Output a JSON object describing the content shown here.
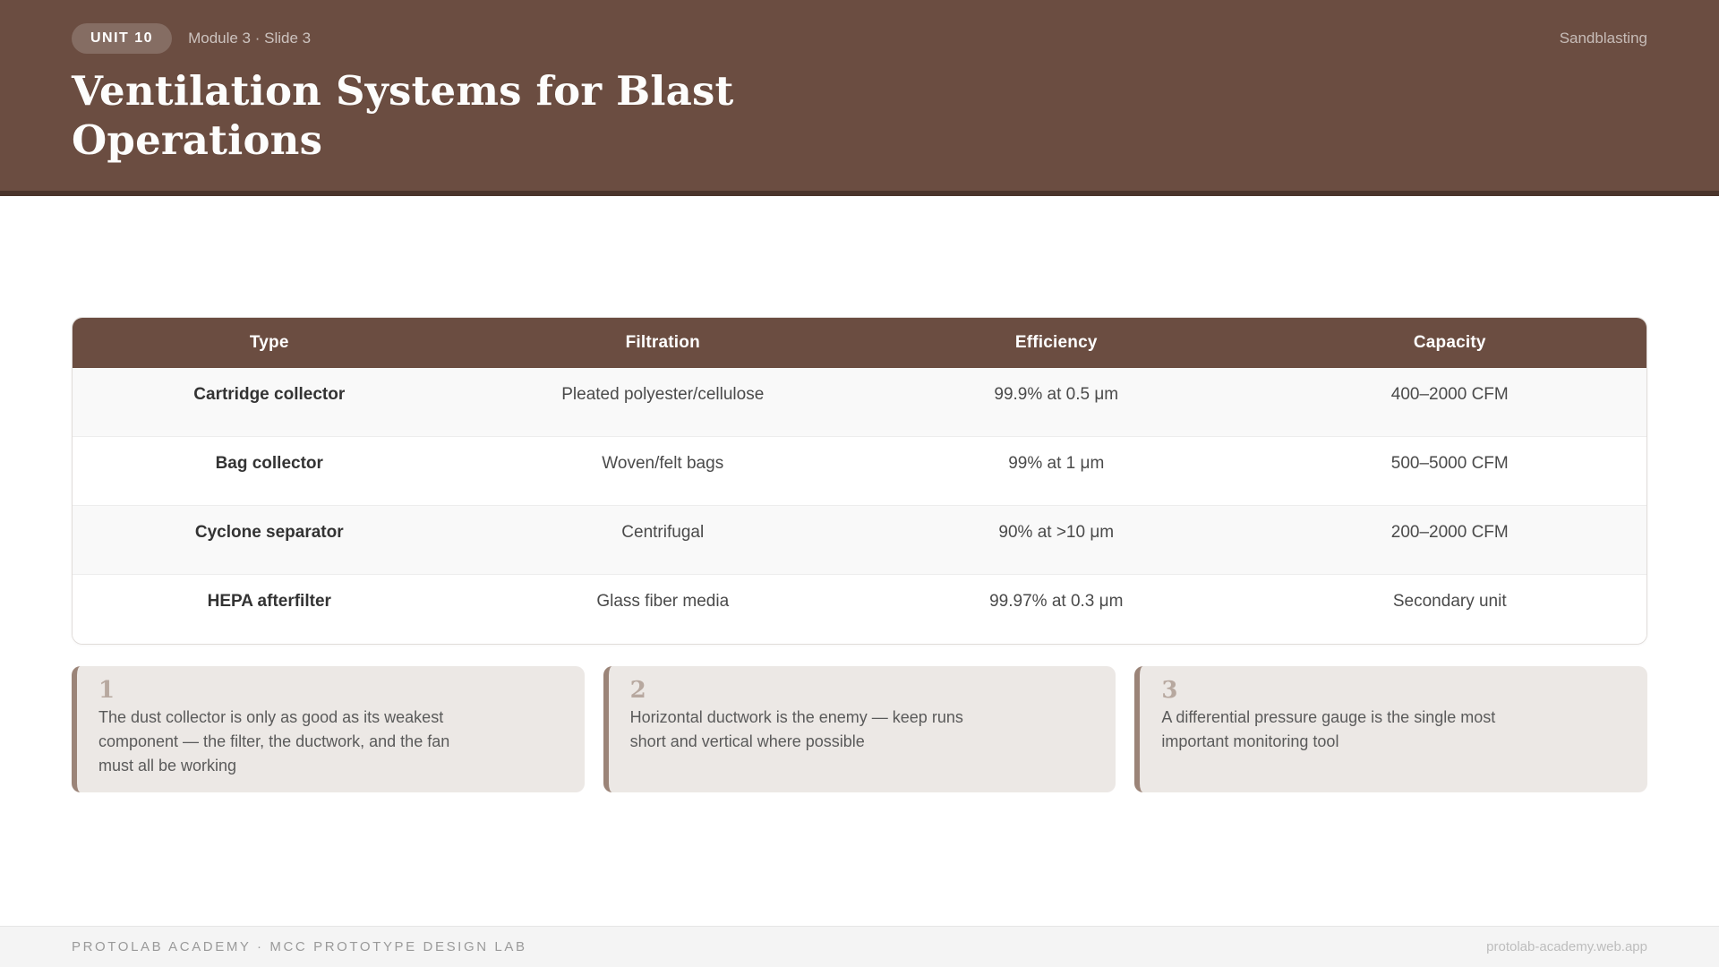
{
  "header": {
    "badge": "UNIT 10",
    "breadcrumb": "Module 3 · Slide 3",
    "topic": "Sandblasting",
    "title": "Ventilation Systems for Blast Operations"
  },
  "table": {
    "columns": [
      "Type",
      "Filtration",
      "Efficiency",
      "Capacity"
    ],
    "rows": [
      [
        "Cartridge collector",
        "Pleated polyester/cellulose",
        "99.9% at 0.5 μm",
        "400–2000 CFM"
      ],
      [
        "Bag collector",
        "Woven/felt bags",
        "99% at 1 μm",
        "500–5000 CFM"
      ],
      [
        "Cyclone separator",
        "Centrifugal",
        "90% at >10 μm",
        "200–2000 CFM"
      ],
      [
        "HEPA afterfilter",
        "Glass fiber media",
        "99.97% at 0.3 μm",
        "Secondary unit"
      ]
    ]
  },
  "notes": [
    {
      "number": "1",
      "text": "The dust collector is only as good as its weakest component — the filter, the ductwork, and the fan must all be working"
    },
    {
      "number": "2",
      "text": "Horizontal ductwork is the enemy — keep runs short and vertical where possible"
    },
    {
      "number": "3",
      "text": "A differential pressure gauge is the single most important monitoring tool"
    }
  ],
  "footer": {
    "left": "PROTOLAB ACADEMY · MCC PROTOTYPE DESIGN LAB",
    "right": "protolab-academy.web.app"
  },
  "colors": {
    "header_brown": "#6b4d41",
    "header_strip": "#4a342b",
    "table_header": "#6b4d41",
    "row_alt": "#f9f9f9",
    "note_bg": "#ece8e5",
    "note_stripe": "#9b8478",
    "note_number": "#b7a89f"
  }
}
